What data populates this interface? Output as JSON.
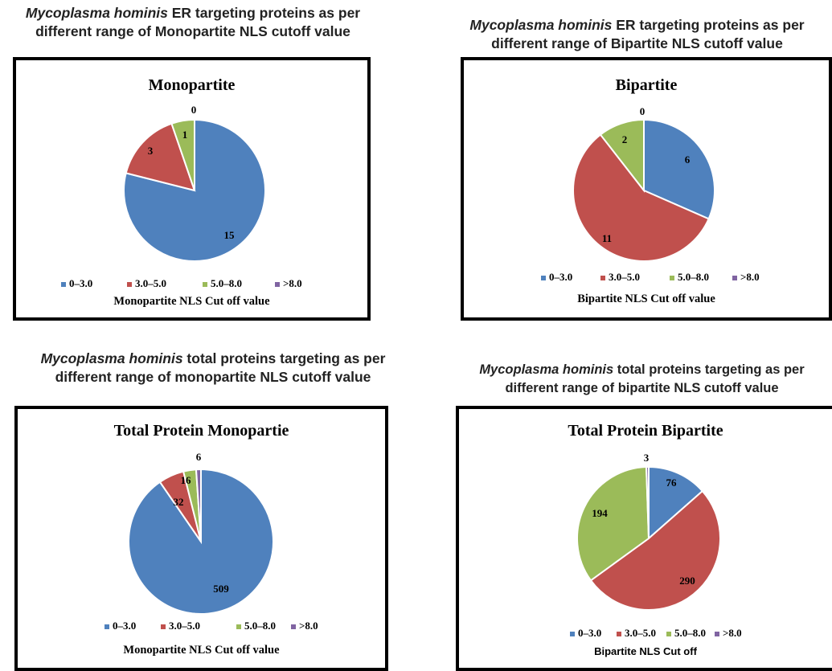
{
  "colors": {
    "0–3.0": "#4f81bd",
    "3.0–5.0": "#c0504d",
    "5.0–8.0": "#9bbb59",
    ">8.0": "#8064a2"
  },
  "captions": [
    {
      "italic": "Mycoplasma hominis",
      "rest": " ER targeting proteins as per",
      "line2": "different range of Monopartite NLS cutoff value"
    },
    {
      "italic": "Mycoplasma hominis",
      "rest": " ER targeting proteins as per",
      "line2": "different range of Bipartite NLS cutoff value"
    },
    {
      "italic": "Mycoplasma hominis",
      "rest": " total proteins targeting as per",
      "line2": "different range of monopartite NLS cutoff value"
    },
    {
      "italic": "Mycoplasma hominis",
      "rest": " total proteins targeting as per",
      "line2": "different range of bipartite NLS cutoff value"
    }
  ],
  "chart_data": [
    {
      "type": "pie",
      "title": "Monopartite",
      "categories": [
        "0–3.0",
        "3.0–5.0",
        "5.0–8.0",
        ">8.0"
      ],
      "values": [
        15,
        3,
        1,
        0
      ],
      "data_labels": [
        "15",
        "3",
        "1",
        "0"
      ],
      "xlabel": "Monopartite NLS Cut off value",
      "legend": "bottom"
    },
    {
      "type": "pie",
      "title": "Bipartite",
      "categories": [
        "0–3.0",
        "3.0–5.0",
        "5.0–8.0",
        ">8.0"
      ],
      "values": [
        6,
        11,
        2,
        0
      ],
      "data_labels": [
        "6",
        "11",
        "2",
        "0"
      ],
      "xlabel": "Bipartite NLS Cut off value",
      "legend": "bottom"
    },
    {
      "type": "pie",
      "title": "Total Protein  Monopartie",
      "categories": [
        "0–3.0",
        "3.0–5.0",
        "5.0–8.0",
        ">8.0"
      ],
      "values": [
        509,
        32,
        16,
        6
      ],
      "data_labels": [
        "509",
        "32",
        "16",
        "6"
      ],
      "xlabel": "Monopartite NLS Cut off value",
      "legend": "bottom"
    },
    {
      "type": "pie",
      "title": "Total Protein Bipartite",
      "categories": [
        "0–3.0",
        "3.0–5.0",
        "5.0–8.0",
        ">8.0"
      ],
      "values": [
        76,
        290,
        194,
        3
      ],
      "data_labels": [
        "76",
        "290",
        "194",
        "3"
      ],
      "xlabel": "Bipartite NLS Cut off",
      "legend": "bottom"
    }
  ]
}
